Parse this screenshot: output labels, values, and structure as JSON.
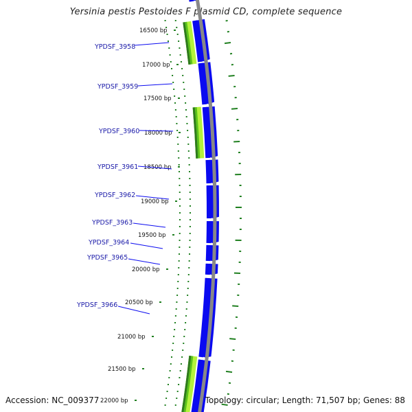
{
  "title": "Yersinia pestis Pestoides F plasmid CD, complete sequence",
  "accession": "Accession: NC_009377",
  "topology": "Topology: circular; Length: 71,507 bp; Genes: 88",
  "colors": {
    "gene": "#0a0af0",
    "gene_label": "#1a1aa8",
    "tick": "#1f7f1f",
    "green_dark": "#2f7a1f",
    "green_mid": "#5cc21c",
    "green_light": "#b4f23c",
    "backbone": "#888888"
  },
  "bp_ticks": [
    {
      "label": "16500 bp"
    },
    {
      "label": "17000 bp"
    },
    {
      "label": "17500 bp"
    },
    {
      "label": "18000 bp"
    },
    {
      "label": "18500 bp"
    },
    {
      "label": "19000 bp"
    },
    {
      "label": "19500 bp"
    },
    {
      "label": "20000 bp"
    },
    {
      "label": "20500 bp"
    },
    {
      "label": "21000 bp"
    },
    {
      "label": "21500 bp"
    },
    {
      "label": "22000 bp"
    }
  ],
  "genes": [
    {
      "name": "YPDSF_3958"
    },
    {
      "name": "YPDSF_3959"
    },
    {
      "name": "YPDSF_3960"
    },
    {
      "name": "YPDSF_3961"
    },
    {
      "name": "YPDSF_3962"
    },
    {
      "name": "YPDSF_3963"
    },
    {
      "name": "YPDSF_3964"
    },
    {
      "name": "YPDSF_3965"
    },
    {
      "name": "YPDSF_3966"
    }
  ]
}
